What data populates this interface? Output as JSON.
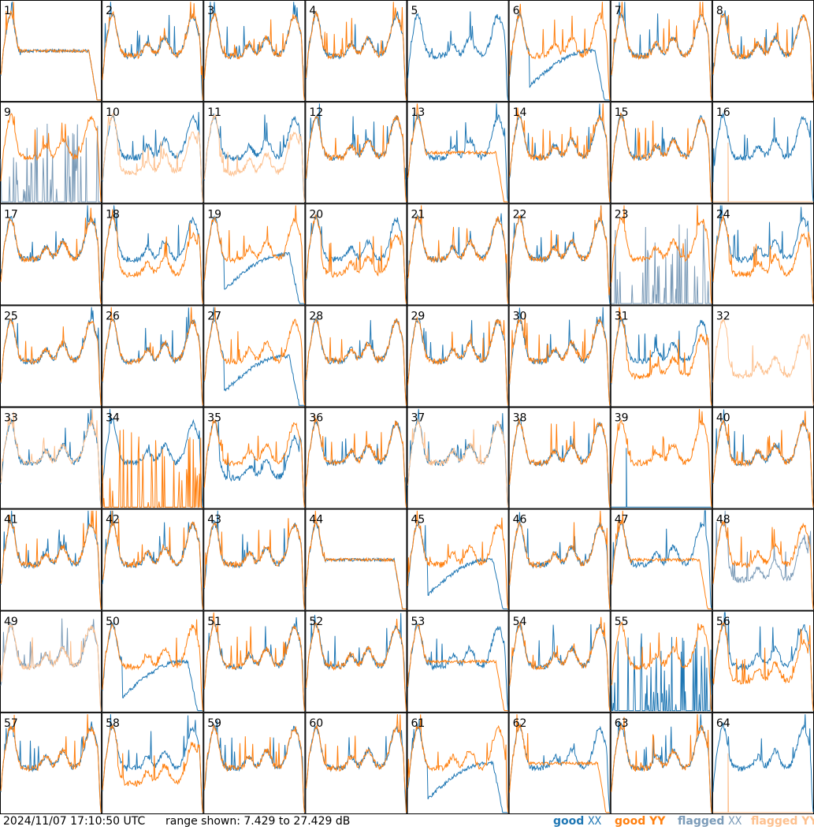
{
  "chart_data": {
    "type": "line",
    "layout": "8x8 small multiples of antenna spectra",
    "timestamp": "2024/11/07 17:10:50 UTC",
    "range_text": "range shown: 7.429 to 27.429 dB",
    "ylim_db": [
      7.429,
      27.429
    ],
    "panels": [
      {
        "label": "1",
        "xx": "good",
        "yy": "good",
        "shape": "rolloff"
      },
      {
        "label": "2",
        "xx": "good",
        "yy": "good",
        "shape": "normal"
      },
      {
        "label": "3",
        "xx": "good",
        "yy": "good",
        "shape": "normal"
      },
      {
        "label": "4",
        "xx": "good",
        "yy": "good",
        "shape": "normal"
      },
      {
        "label": "5",
        "xx": "good",
        "yy": "none",
        "shape": "normal"
      },
      {
        "label": "6",
        "xx": "good",
        "yy": "good",
        "shape": "xx-dip"
      },
      {
        "label": "7",
        "xx": "good",
        "yy": "good",
        "shape": "normal"
      },
      {
        "label": "8",
        "xx": "good",
        "yy": "good",
        "shape": "normal"
      },
      {
        "label": "9",
        "xx": "flagged",
        "yy": "good",
        "shape": "xx-spiky"
      },
      {
        "label": "10",
        "xx": "good",
        "yy": "flagged",
        "shape": "yy-low"
      },
      {
        "label": "11",
        "xx": "good",
        "yy": "flagged",
        "shape": "yy-low"
      },
      {
        "label": "12",
        "xx": "good",
        "yy": "good",
        "shape": "normal"
      },
      {
        "label": "13",
        "xx": "good",
        "yy": "good",
        "shape": "yy-rolloff"
      },
      {
        "label": "14",
        "xx": "good",
        "yy": "good",
        "shape": "normal"
      },
      {
        "label": "15",
        "xx": "good",
        "yy": "good",
        "shape": "normal"
      },
      {
        "label": "16",
        "xx": "good",
        "yy": "flagged",
        "shape": "yy-spike"
      },
      {
        "label": "17",
        "xx": "good",
        "yy": "good",
        "shape": "normal"
      },
      {
        "label": "18",
        "xx": "good",
        "yy": "good",
        "shape": "yy-low"
      },
      {
        "label": "19",
        "xx": "good",
        "yy": "good",
        "shape": "xx-dip"
      },
      {
        "label": "20",
        "xx": "good",
        "yy": "good",
        "shape": "yy-low"
      },
      {
        "label": "21",
        "xx": "good",
        "yy": "good",
        "shape": "normal"
      },
      {
        "label": "22",
        "xx": "good",
        "yy": "good",
        "shape": "normal"
      },
      {
        "label": "23",
        "xx": "flagged",
        "yy": "good",
        "shape": "xx-spiky"
      },
      {
        "label": "24",
        "xx": "good",
        "yy": "good",
        "shape": "yy-low"
      },
      {
        "label": "25",
        "xx": "good",
        "yy": "good",
        "shape": "normal"
      },
      {
        "label": "26",
        "xx": "good",
        "yy": "good",
        "shape": "normal"
      },
      {
        "label": "27",
        "xx": "good",
        "yy": "good",
        "shape": "xx-dip"
      },
      {
        "label": "28",
        "xx": "good",
        "yy": "good",
        "shape": "normal"
      },
      {
        "label": "29",
        "xx": "good",
        "yy": "good",
        "shape": "normal"
      },
      {
        "label": "30",
        "xx": "good",
        "yy": "good",
        "shape": "normal"
      },
      {
        "label": "31",
        "xx": "good",
        "yy": "good",
        "shape": "yy-low"
      },
      {
        "label": "32",
        "xx": "good",
        "yy": "flagged",
        "shape": "yy-only"
      },
      {
        "label": "33",
        "xx": "good",
        "yy": "flagged",
        "shape": "normal"
      },
      {
        "label": "34",
        "xx": "good",
        "yy": "good",
        "shape": "yy-spiky"
      },
      {
        "label": "35",
        "xx": "good",
        "yy": "good",
        "shape": "xx-low"
      },
      {
        "label": "36",
        "xx": "good",
        "yy": "good",
        "shape": "normal"
      },
      {
        "label": "37",
        "xx": "good",
        "yy": "flagged",
        "shape": "normal"
      },
      {
        "label": "38",
        "xx": "good",
        "yy": "good",
        "shape": "normal"
      },
      {
        "label": "39",
        "xx": "good",
        "yy": "good",
        "shape": "xx-spike"
      },
      {
        "label": "40",
        "xx": "good",
        "yy": "good",
        "shape": "normal"
      },
      {
        "label": "41",
        "xx": "good",
        "yy": "good",
        "shape": "normal"
      },
      {
        "label": "42",
        "xx": "good",
        "yy": "good",
        "shape": "normal"
      },
      {
        "label": "43",
        "xx": "good",
        "yy": "good",
        "shape": "normal"
      },
      {
        "label": "44",
        "xx": "good",
        "yy": "good",
        "shape": "rolloff"
      },
      {
        "label": "45",
        "xx": "good",
        "yy": "good",
        "shape": "xx-dip"
      },
      {
        "label": "46",
        "xx": "good",
        "yy": "good",
        "shape": "normal"
      },
      {
        "label": "47",
        "xx": "good",
        "yy": "good",
        "shape": "yy-rolloff"
      },
      {
        "label": "48",
        "xx": "flagged",
        "yy": "good",
        "shape": "xx-low"
      },
      {
        "label": "49",
        "xx": "flagged",
        "yy": "flagged",
        "shape": "normal"
      },
      {
        "label": "50",
        "xx": "good",
        "yy": "good",
        "shape": "xx-dip"
      },
      {
        "label": "51",
        "xx": "good",
        "yy": "good",
        "shape": "normal"
      },
      {
        "label": "52",
        "xx": "good",
        "yy": "good",
        "shape": "normal"
      },
      {
        "label": "53",
        "xx": "good",
        "yy": "good",
        "shape": "yy-rolloff"
      },
      {
        "label": "54",
        "xx": "good",
        "yy": "good",
        "shape": "normal"
      },
      {
        "label": "55",
        "xx": "good",
        "yy": "good",
        "shape": "xx-spiky"
      },
      {
        "label": "56",
        "xx": "good",
        "yy": "good",
        "shape": "yy-low"
      },
      {
        "label": "57",
        "xx": "good",
        "yy": "good",
        "shape": "normal"
      },
      {
        "label": "58",
        "xx": "good",
        "yy": "good",
        "shape": "yy-low"
      },
      {
        "label": "59",
        "xx": "good",
        "yy": "good",
        "shape": "normal"
      },
      {
        "label": "60",
        "xx": "good",
        "yy": "good",
        "shape": "normal"
      },
      {
        "label": "61",
        "xx": "good",
        "yy": "good",
        "shape": "xx-dip"
      },
      {
        "label": "62",
        "xx": "good",
        "yy": "good",
        "shape": "yy-rolloff"
      },
      {
        "label": "63",
        "xx": "good",
        "yy": "good",
        "shape": "normal"
      },
      {
        "label": "64",
        "xx": "good",
        "yy": "flagged",
        "shape": "yy-spike"
      }
    ],
    "legend": [
      {
        "name": "good XX",
        "label_a": "good ",
        "label_b": "XX",
        "color": "#1f77b4"
      },
      {
        "name": "good YY",
        "label_a": "good YY",
        "label_b": "",
        "color": "#ff7f0e"
      },
      {
        "name": "flagged XX",
        "label_a": "flagged ",
        "label_b": "XX",
        "color": "#7b9bb8"
      },
      {
        "name": "flagged YY",
        "label_a": "flagged YY",
        "label_b": "",
        "color": "#fdc08e"
      }
    ],
    "colors": {
      "good_xx": "#1f77b4",
      "good_yy": "#ff7f0e",
      "flagged_xx": "#7b9bb8",
      "flagged_yy": "#fdc08e"
    }
  }
}
